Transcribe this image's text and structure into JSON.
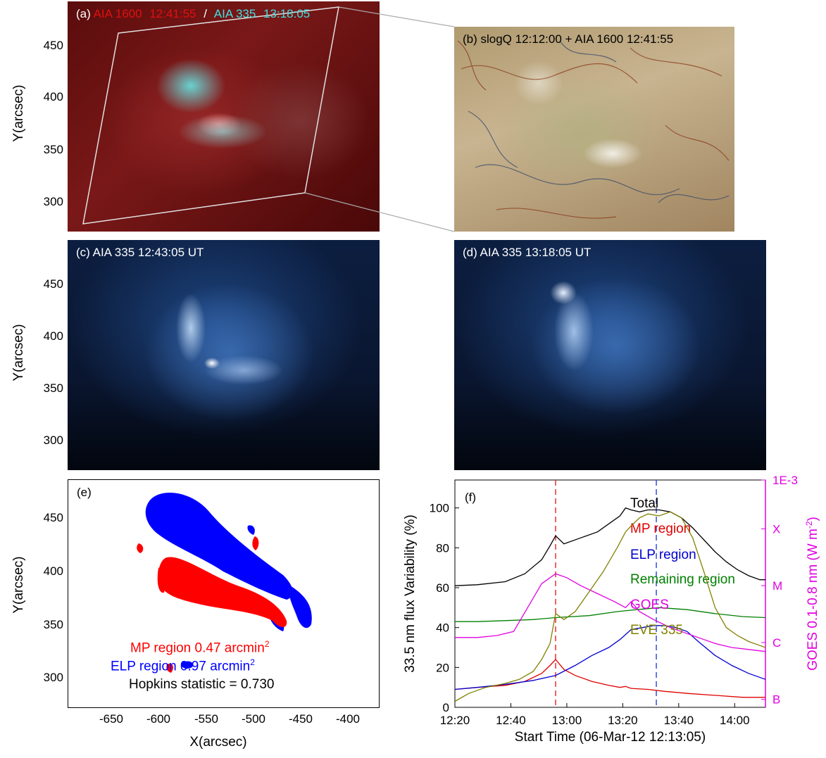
{
  "panel_a": {
    "label": "(a)",
    "part1": "AIA 1600",
    "time1": "12:41:55",
    "sep": "/",
    "part2": "AIA 335",
    "time2": "13:18:05",
    "colors": {
      "red": "#e01010",
      "cyan": "#40e0e0"
    }
  },
  "panel_b": {
    "title": "(b) slogQ 12:12:00 + AIA 1600 12:41:55"
  },
  "panel_c": {
    "title": "(c) AIA 335  12:43:05 UT"
  },
  "panel_d": {
    "title": "(d) AIA 335  13:18:05 UT"
  },
  "panel_e": {
    "label": "(e)",
    "mp_text": "MP region  0.47 arcmin",
    "elp_text": "ELP region  0.97 arcmin",
    "sup": "2",
    "hopkins": "Hopkins statistic = 0.730",
    "colors": {
      "mp": "#ff0000",
      "elp": "#0000ff"
    }
  },
  "axes": {
    "ylabel": "Y(arcsec)",
    "xlabel": "X(arcsec)",
    "yticks": [
      "450",
      "400",
      "350",
      "300"
    ],
    "xticks": [
      "-650",
      "-600",
      "-550",
      "-500",
      "-450",
      "-400"
    ]
  },
  "chart_data": {
    "type": "line",
    "label": "(f)",
    "xlabel": "Start Time (06-Mar-12 12:13:05)",
    "ylabel": "33.5 nm flux Variability (%)",
    "ylabel2": "GOES 0.1-0.8 nm (W m",
    "ylabel2_sup": "-2",
    "ylabel2_end": ")",
    "xticks": [
      "12:20",
      "12:40",
      "13:00",
      "13:20",
      "13:40",
      "14:00"
    ],
    "yticks": [
      "0",
      "20",
      "40",
      "60",
      "80",
      "100"
    ],
    "y2ticks": [
      "B",
      "C",
      "M",
      "X",
      "1E-3"
    ],
    "xlim_min": [
      7,
      118
    ],
    "ylim": [
      0,
      114
    ],
    "vlines": [
      {
        "x": 43,
        "color": "#e83030"
      },
      {
        "x": 79,
        "color": "#3050e0"
      }
    ],
    "series": [
      {
        "name": "Total",
        "color": "#000000",
        "x": [
          7,
          15,
          25,
          32,
          38,
          41,
          43,
          46,
          52,
          58,
          62,
          66,
          68,
          70,
          73,
          76,
          80,
          84,
          88,
          92,
          96,
          100,
          104,
          108,
          112,
          116,
          118
        ],
        "y": [
          61,
          61.5,
          63,
          67,
          74,
          81,
          86,
          82,
          85,
          88,
          92,
          96,
          100,
          99,
          98,
          99,
          99,
          98,
          95,
          90,
          84,
          78,
          73,
          69,
          66,
          64,
          64
        ]
      },
      {
        "name": "MP region",
        "color": "#e00000",
        "x": [
          7,
          15,
          25,
          32,
          38,
          41,
          43,
          46,
          50,
          56,
          62,
          66,
          68,
          70,
          76,
          82,
          90,
          100,
          110,
          118
        ],
        "y": [
          9,
          10,
          11,
          13,
          17,
          21,
          24,
          19,
          16,
          13,
          11,
          10,
          10.5,
          9.5,
          9,
          8,
          7,
          6,
          5,
          5
        ]
      },
      {
        "name": "ELP region",
        "color": "#0000d0",
        "x": [
          7,
          15,
          25,
          35,
          43,
          50,
          56,
          62,
          66,
          70,
          74,
          78,
          82,
          86,
          90,
          94,
          100,
          106,
          112,
          118
        ],
        "y": [
          9,
          10,
          11.5,
          13.5,
          16,
          21,
          26,
          30,
          34,
          39,
          40,
          41,
          41,
          40,
          38,
          33,
          26,
          21,
          17,
          14
        ]
      },
      {
        "name": "Remaining region",
        "color": "#008000",
        "x": [
          7,
          15,
          25,
          35,
          43,
          55,
          65,
          72,
          80,
          90,
          100,
          110,
          118
        ],
        "y": [
          43,
          43,
          43.5,
          44,
          45,
          46,
          48,
          49,
          50,
          49,
          47,
          45.5,
          45
        ]
      },
      {
        "name": "GOES",
        "color": "#e000e0",
        "x": [
          7,
          15,
          22,
          28,
          33,
          38,
          43,
          47,
          52,
          58,
          64,
          68,
          70,
          73,
          78,
          84,
          90,
          96,
          100,
          106,
          112,
          118
        ],
        "y": [
          35,
          35,
          36,
          38,
          50,
          62,
          67,
          65,
          61,
          57,
          53,
          50,
          53,
          48,
          44,
          40,
          37,
          34,
          32,
          30,
          29,
          28
        ]
      },
      {
        "name": "EVE 335",
        "color": "#808000",
        "x": [
          7,
          12,
          18,
          25,
          30,
          35,
          38,
          41,
          43,
          46,
          50,
          55,
          60,
          65,
          68,
          70,
          73,
          76,
          80,
          84,
          88,
          92,
          96,
          100,
          104,
          108,
          112,
          116,
          118
        ],
        "y": [
          3,
          7,
          10,
          12,
          14,
          18,
          24,
          32,
          47,
          44,
          48,
          58,
          68,
          80,
          88,
          91,
          95,
          97,
          96,
          98,
          95,
          85,
          68,
          50,
          40,
          36,
          33,
          31,
          30
        ]
      }
    ]
  }
}
